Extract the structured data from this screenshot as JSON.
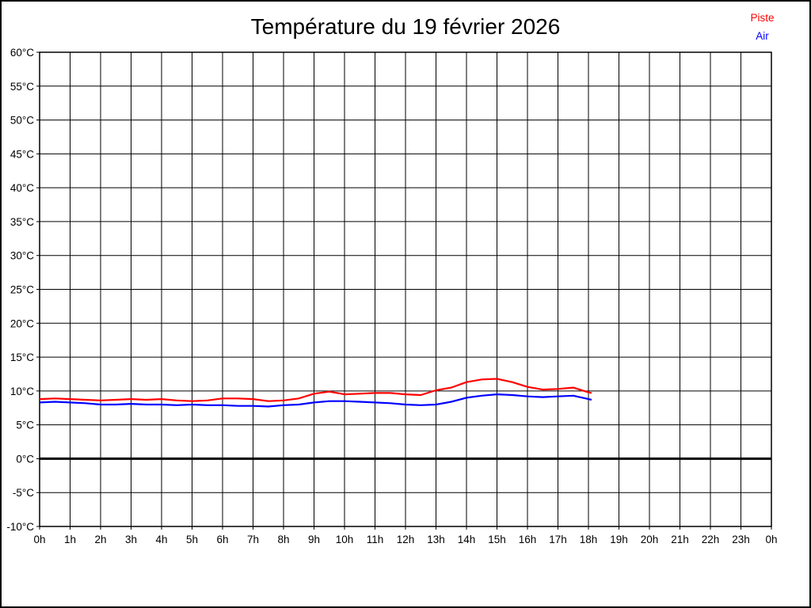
{
  "title": "Température du 19 février 2026",
  "legend": [
    {
      "label": "Piste",
      "color": "#ff0000"
    },
    {
      "label": "Air",
      "color": "#0000ff"
    }
  ],
  "chart_data": {
    "type": "line",
    "title": "Température du 19 février 2026",
    "xlabel": "",
    "ylabel": "",
    "xlim": [
      0,
      24
    ],
    "ylim": [
      -10,
      60
    ],
    "grid": true,
    "grid_color": "#000000",
    "zero_line_value": 0,
    "legend_position": "top-right",
    "x_tick_hours": [
      0,
      1,
      2,
      3,
      4,
      5,
      6,
      7,
      8,
      9,
      10,
      11,
      12,
      13,
      14,
      15,
      16,
      17,
      18,
      19,
      20,
      21,
      22,
      23,
      24
    ],
    "x_tick_labels": [
      "0h",
      "1h",
      "2h",
      "3h",
      "4h",
      "5h",
      "6h",
      "7h",
      "8h",
      "9h",
      "10h",
      "11h",
      "12h",
      "13h",
      "14h",
      "15h",
      "16h",
      "17h",
      "18h",
      "19h",
      "20h",
      "21h",
      "22h",
      "23h",
      "0h"
    ],
    "y_tick_values": [
      60,
      55,
      50,
      45,
      40,
      35,
      30,
      25,
      20,
      15,
      10,
      5,
      0,
      -5,
      -10
    ],
    "y_tick_labels": [
      "60°C",
      "55°C",
      "50°C",
      "45°C",
      "40°C",
      "35°C",
      "30°C",
      "25°C",
      "20°C",
      "15°C",
      "10°C",
      "5°C",
      "0°C",
      "-5°C",
      "-10°C"
    ],
    "x": [
      0,
      0.5,
      1,
      1.5,
      2,
      2.5,
      3,
      3.5,
      4,
      4.5,
      5,
      5.5,
      6,
      6.5,
      7,
      7.5,
      8,
      8.5,
      9,
      9.5,
      10,
      10.5,
      11,
      11.5,
      12,
      12.5,
      13,
      13.5,
      14,
      14.5,
      15,
      15.5,
      16,
      16.5,
      17,
      17.5,
      18,
      18.1
    ],
    "series": [
      {
        "name": "Piste",
        "color": "#ff0000",
        "values": [
          8.8,
          8.9,
          8.8,
          8.7,
          8.6,
          8.7,
          8.8,
          8.7,
          8.8,
          8.6,
          8.5,
          8.6,
          8.9,
          8.9,
          8.8,
          8.5,
          8.6,
          8.9,
          9.6,
          9.9,
          9.5,
          9.6,
          9.7,
          9.7,
          9.5,
          9.4,
          10.1,
          10.5,
          11.3,
          11.7,
          11.8,
          11.3,
          10.6,
          10.2,
          10.3,
          10.5,
          9.8,
          9.7
        ]
      },
      {
        "name": "Air",
        "color": "#0000ff",
        "values": [
          8.3,
          8.4,
          8.3,
          8.2,
          8.0,
          8.0,
          8.1,
          8.0,
          8.0,
          7.9,
          8.0,
          7.9,
          7.9,
          7.8,
          7.8,
          7.7,
          7.9,
          8.0,
          8.3,
          8.5,
          8.5,
          8.4,
          8.3,
          8.2,
          8.0,
          7.9,
          8.0,
          8.4,
          9.0,
          9.3,
          9.5,
          9.4,
          9.2,
          9.1,
          9.2,
          9.3,
          8.8,
          8.7
        ]
      }
    ]
  }
}
